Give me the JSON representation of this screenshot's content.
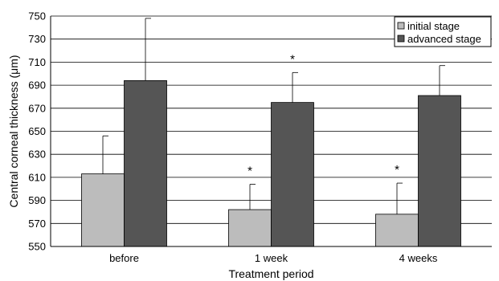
{
  "chart_data": {
    "type": "bar",
    "title": "",
    "xlabel": "Treatment period",
    "ylabel": "Central corneal thickness (μm)",
    "ylim": [
      550,
      750
    ],
    "yticks": [
      550,
      570,
      590,
      610,
      630,
      650,
      670,
      690,
      710,
      730,
      750
    ],
    "categories": [
      "before",
      "1 week",
      "4 weeks"
    ],
    "series": [
      {
        "name": "initial stage",
        "color": "#bcbcbc",
        "values": [
          613,
          582,
          578
        ],
        "errors": [
          33,
          22,
          27
        ]
      },
      {
        "name": "advanced stage",
        "color": "#555555",
        "values": [
          694,
          675,
          681
        ],
        "errors": [
          54,
          26,
          26
        ]
      }
    ],
    "annotations": [
      {
        "series": 0,
        "category": 1,
        "text": "*"
      },
      {
        "series": 0,
        "category": 2,
        "text": "*"
      },
      {
        "series": 1,
        "category": 1,
        "text": "*"
      }
    ],
    "grid": true,
    "legend_position": "top-right"
  }
}
